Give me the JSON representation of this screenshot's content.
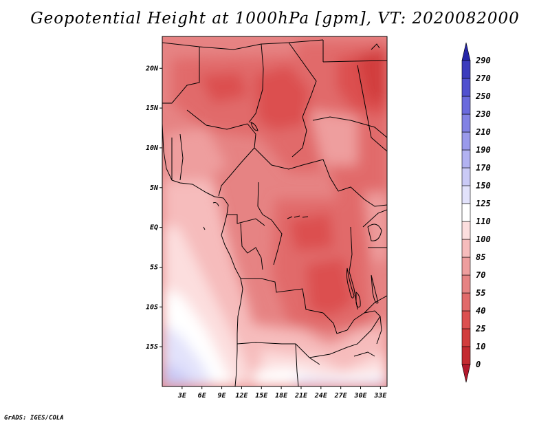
{
  "title": "Geopotential Height at 1000hPa [gpm], VT: 2020082000",
  "credit": "GrADS: IGES/COLA",
  "map": {
    "lon_range": [
      0,
      34
    ],
    "lat_range": [
      -20,
      24
    ],
    "lon_ticks": [
      "3E",
      "6E",
      "9E",
      "12E",
      "15E",
      "18E",
      "21E",
      "24E",
      "27E",
      "30E",
      "33E"
    ],
    "lat_ticks": [
      "20N",
      "15N",
      "10N",
      "5N",
      "EQ",
      "5S",
      "10S",
      "15S"
    ]
  },
  "colorbar": {
    "levels": [
      "0",
      "10",
      "25",
      "40",
      "55",
      "70",
      "85",
      "100",
      "110",
      "125",
      "150",
      "170",
      "190",
      "210",
      "230",
      "250",
      "270",
      "290"
    ],
    "colors": [
      "#b2182b",
      "#c42a30",
      "#d13d3d",
      "#dc5050",
      "#e16a6a",
      "#e68383",
      "#ee9e9e",
      "#f6bcbc",
      "#fcdede",
      "#ffffff",
      "#e2e2fb",
      "#cacaf6",
      "#b2b2f1",
      "#9a9aeb",
      "#8282e4",
      "#6a6add",
      "#5050cf",
      "#3b3bbd",
      "#2626a8"
    ]
  }
}
